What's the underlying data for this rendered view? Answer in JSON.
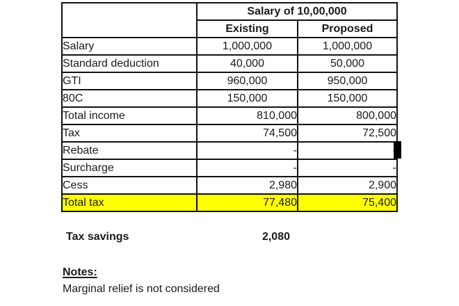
{
  "table": {
    "title": "Salary of 10,00,000",
    "col_headers": [
      "Existing",
      "Proposed"
    ],
    "highlight_color": "#FFFF00",
    "rows": [
      {
        "label": "Salary",
        "existing": "1,000,000",
        "proposed": "1,000,000",
        "align": "center",
        "highlight": false
      },
      {
        "label": "Standard deduction",
        "existing": "40,000",
        "proposed": "50,000",
        "align": "center",
        "highlight": false
      },
      {
        "label": "GTI",
        "existing": "960,000",
        "proposed": "950,000",
        "align": "center",
        "highlight": false
      },
      {
        "label": "80C",
        "existing": "150,000",
        "proposed": "150,000",
        "align": "center",
        "highlight": false
      },
      {
        "label": "Total income",
        "existing": "810,000",
        "proposed": "800,000",
        "align": "right",
        "highlight": false
      },
      {
        "label": "Tax",
        "existing": "74,500",
        "proposed": "72,500",
        "align": "right",
        "highlight": false
      },
      {
        "label": "Rebate",
        "existing": "-",
        "proposed": "-",
        "align": "right",
        "highlight": false
      },
      {
        "label": "Surcharge",
        "existing": "-",
        "proposed": "-",
        "align": "right",
        "highlight": false
      },
      {
        "label": "Cess",
        "existing": "2,980",
        "proposed": "2,900",
        "align": "right",
        "highlight": false
      },
      {
        "label": "Total tax",
        "existing": "77,480",
        "proposed": "75,400",
        "align": "right",
        "highlight": true
      }
    ]
  },
  "summary": {
    "tax_savings_label": "Tax savings",
    "tax_savings_value": "2,080"
  },
  "notes": {
    "heading": "Notes:",
    "line1": "Marginal relief is not considered"
  }
}
